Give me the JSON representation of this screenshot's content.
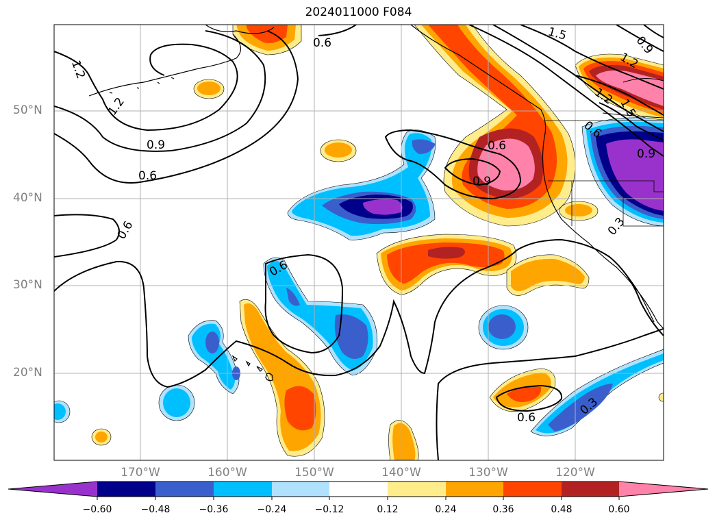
{
  "title": "2024011000 F084",
  "lat_labels": [
    "50°N",
    "40°N",
    "30°N",
    "20°N"
  ],
  "lon_labels": [
    "170°W",
    "160°W",
    "150°W",
    "140°W",
    "130°W",
    "120°W"
  ],
  "contour_labels": [
    "1.2",
    "1.2",
    "0.9",
    "0.6",
    "0.6",
    "0.6",
    "0.6",
    "0.9",
    "0.6",
    "1.5",
    "0.9",
    "1.2",
    "1.2",
    "1.5",
    "0.6",
    "0.9",
    "0.3",
    "0.6",
    "0.3"
  ],
  "colorbar": {
    "ticks": [
      "−0.60",
      "−0.48",
      "−0.36",
      "−0.24",
      "−0.12",
      "0.12",
      "0.24",
      "0.36",
      "0.48",
      "0.60"
    ],
    "colors": [
      "#9932cc",
      "#00008b",
      "#3a5fcd",
      "#00bfff",
      "#b0e2ff",
      "#ffffff",
      "#ffec8b",
      "#ffa500",
      "#ff4500",
      "#b22222",
      "#ff82ab"
    ]
  },
  "palette": {
    "deep_purple": "#9932cc",
    "navy": "#00008b",
    "royal_blue": "#3a5fcd",
    "sky_blue": "#00bfff",
    "light_blue": "#b0e2ff",
    "light_yellow": "#ffec8b",
    "orange": "#ffa500",
    "orange_red": "#ff4500",
    "firebrick": "#b22222",
    "pink": "#ff82ab"
  }
}
